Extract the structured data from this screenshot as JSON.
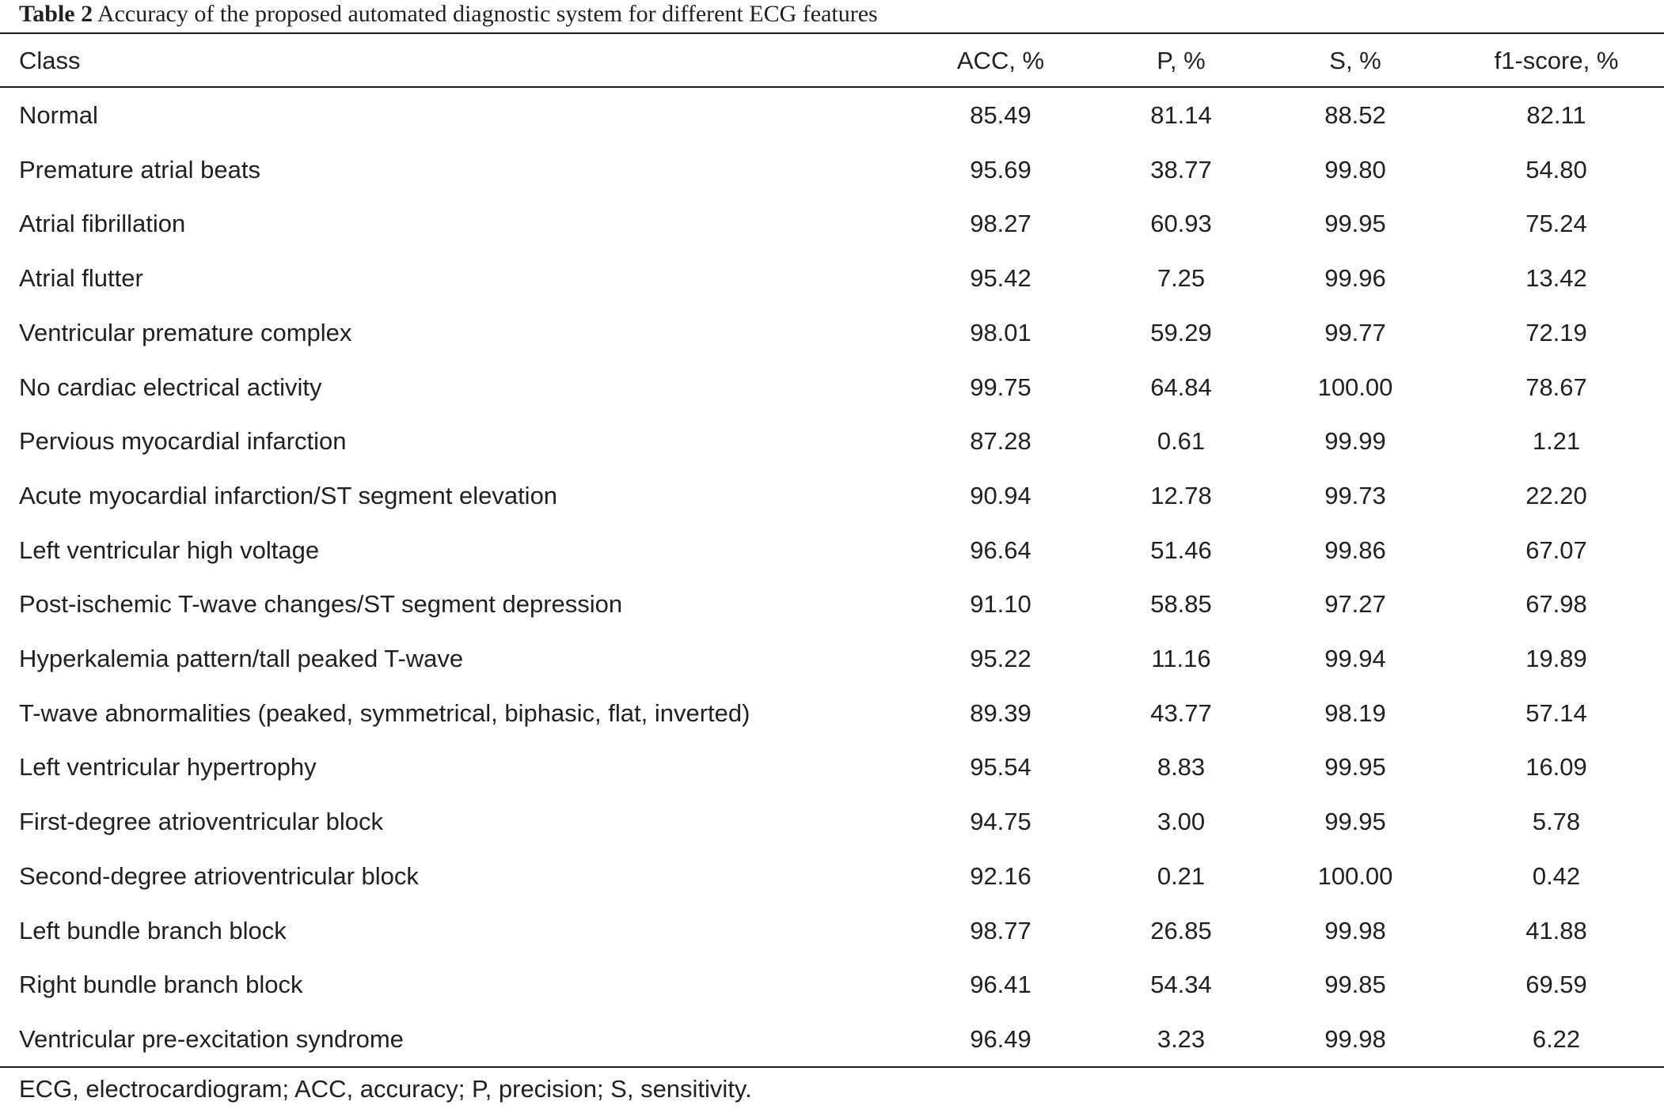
{
  "caption": {
    "label": "Table 2",
    "text": "Accuracy of the proposed automated diagnostic system for different ECG features"
  },
  "table": {
    "columns": [
      "Class",
      "ACC, %",
      "P, %",
      "S, %",
      "f1-score, %"
    ],
    "rows": [
      [
        "Normal",
        "85.49",
        "81.14",
        "88.52",
        "82.11"
      ],
      [
        "Premature atrial beats",
        "95.69",
        "38.77",
        "99.80",
        "54.80"
      ],
      [
        "Atrial fibrillation",
        "98.27",
        "60.93",
        "99.95",
        "75.24"
      ],
      [
        "Atrial flutter",
        "95.42",
        "7.25",
        "99.96",
        "13.42"
      ],
      [
        "Ventricular premature complex",
        "98.01",
        "59.29",
        "99.77",
        "72.19"
      ],
      [
        "No cardiac electrical activity",
        "99.75",
        "64.84",
        "100.00",
        "78.67"
      ],
      [
        "Pervious myocardial infarction",
        "87.28",
        "0.61",
        "99.99",
        "1.21"
      ],
      [
        "Acute myocardial infarction/ST segment elevation",
        "90.94",
        "12.78",
        "99.73",
        "22.20"
      ],
      [
        "Left ventricular high voltage",
        "96.64",
        "51.46",
        "99.86",
        "67.07"
      ],
      [
        "Post-ischemic T-wave changes/ST segment depression",
        "91.10",
        "58.85",
        "97.27",
        "67.98"
      ],
      [
        "Hyperkalemia pattern/tall peaked T-wave",
        "95.22",
        "11.16",
        "99.94",
        "19.89"
      ],
      [
        "T-wave abnormalities (peaked, symmetrical, biphasic, flat, inverted)",
        "89.39",
        "43.77",
        "98.19",
        "57.14"
      ],
      [
        "Left ventricular hypertrophy",
        "95.54",
        "8.83",
        "99.95",
        "16.09"
      ],
      [
        "First-degree atrioventricular block",
        "94.75",
        "3.00",
        "99.95",
        "5.78"
      ],
      [
        "Second-degree atrioventricular block",
        "92.16",
        "0.21",
        "100.00",
        "0.42"
      ],
      [
        "Left bundle branch block",
        "98.77",
        "26.85",
        "99.98",
        "41.88"
      ],
      [
        "Right bundle branch block",
        "96.41",
        "54.34",
        "99.85",
        "69.59"
      ],
      [
        "Ventricular pre-excitation syndrome",
        "96.49",
        "3.23",
        "99.98",
        "6.22"
      ]
    ]
  },
  "footnote": "ECG, electrocardiogram; ACC, accuracy; P, precision; S, sensitivity."
}
